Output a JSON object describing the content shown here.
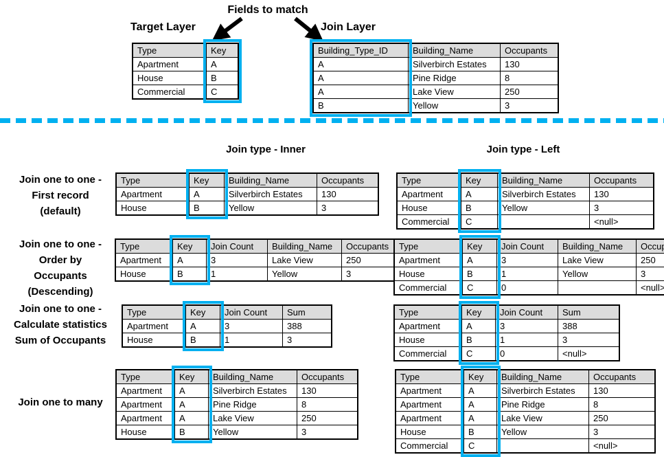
{
  "title": "Fields to match",
  "top": {
    "target_label": "Target Layer",
    "join_label": "Join Layer",
    "target_table": {
      "name": "target-layer",
      "headers": [
        "Type",
        "Key"
      ],
      "rows": [
        [
          "Apartment",
          "A"
        ],
        [
          "House",
          "B"
        ],
        [
          "Commercial",
          "C"
        ]
      ],
      "key_col": 1
    },
    "join_table": {
      "name": "join-layer",
      "headers": [
        "Building_Type_ID",
        "Building_Name",
        "Occupants"
      ],
      "rows": [
        [
          "A",
          "Silverbirch Estates",
          "130"
        ],
        [
          "A",
          "Pine Ridge",
          "8"
        ],
        [
          "A",
          "Lake View",
          "250"
        ],
        [
          "B",
          "Yellow",
          "3"
        ]
      ],
      "key_col": 0
    }
  },
  "join_type_headers": {
    "inner": "Join type - Inner",
    "left": "Join type - Left"
  },
  "sections": [
    {
      "label_lines": [
        "Join one to one -",
        "First record",
        "(default)"
      ],
      "inner_table": {
        "name": "inner-join-first-record",
        "headers": [
          "Type",
          "Key",
          "Building_Name",
          "Occupants"
        ],
        "rows": [
          [
            "Apartment",
            "A",
            "Silverbirch Estates",
            "130"
          ],
          [
            "House",
            "B",
            "Yellow",
            "3"
          ]
        ],
        "key_col": 1
      },
      "left_table": {
        "name": "left-join-first-record",
        "headers": [
          "Type",
          "Key",
          "Building_Name",
          "Occupants"
        ],
        "rows": [
          [
            "Apartment",
            "A",
            "Silverbirch Estates",
            "130"
          ],
          [
            "House",
            "B",
            "Yellow",
            "3"
          ],
          [
            "Commercial",
            "C",
            "",
            "<null>"
          ]
        ],
        "key_col": 1
      }
    },
    {
      "label_lines": [
        "Join one to one -",
        "Order by",
        "Occupants",
        "(Descending)"
      ],
      "inner_table": {
        "name": "inner-join-order-by",
        "headers": [
          "Type",
          "Key",
          "Join Count",
          "Building_Name",
          "Occupants"
        ],
        "rows": [
          [
            "Apartment",
            "A",
            "3",
            "Lake View",
            "250"
          ],
          [
            "House",
            "B",
            "1",
            "Yellow",
            "3"
          ]
        ],
        "key_col": 1
      },
      "left_table": {
        "name": "left-join-order-by",
        "headers": [
          "Type",
          "Key",
          "Join Count",
          "Building_Name",
          "Occupants"
        ],
        "rows": [
          [
            "Apartment",
            "A",
            "3",
            "Lake View",
            "250"
          ],
          [
            "House",
            "B",
            "1",
            "Yellow",
            "3"
          ],
          [
            "Commercial",
            "C",
            "0",
            "",
            "<null>"
          ]
        ],
        "key_col": 1
      }
    },
    {
      "label_lines": [
        "Join one to one -",
        "Calculate statistics",
        "Sum of Occupants"
      ],
      "inner_table": {
        "name": "inner-join-statistics",
        "headers": [
          "Type",
          "Key",
          "Join Count",
          "Sum"
        ],
        "rows": [
          [
            "Apartment",
            "A",
            "3",
            "388"
          ],
          [
            "House",
            "B",
            "1",
            "3"
          ]
        ],
        "key_col": 1
      },
      "left_table": {
        "name": "left-join-statistics",
        "headers": [
          "Type",
          "Key",
          "Join Count",
          "Sum"
        ],
        "rows": [
          [
            "Apartment",
            "A",
            "3",
            "388"
          ],
          [
            "House",
            "B",
            "1",
            "3"
          ],
          [
            "Commercial",
            "C",
            "0",
            "<null>"
          ]
        ],
        "key_col": 1
      }
    },
    {
      "label_lines": [
        "Join one to many"
      ],
      "inner_table": {
        "name": "inner-join-one-to-many",
        "headers": [
          "Type",
          "Key",
          "Building_Name",
          "Occupants"
        ],
        "rows": [
          [
            "Apartment",
            "A",
            "Silverbirch Estates",
            "130"
          ],
          [
            "Apartment",
            "A",
            "Pine Ridge",
            "8"
          ],
          [
            "Apartment",
            "A",
            "Lake View",
            "250"
          ],
          [
            "House",
            "B",
            "Yellow",
            "3"
          ]
        ],
        "key_col": 1
      },
      "left_table": {
        "name": "left-join-one-to-many",
        "headers": [
          "Type",
          "Key",
          "Building_Name",
          "Occupants"
        ],
        "rows": [
          [
            "Apartment",
            "A",
            "Silverbirch Estates",
            "130"
          ],
          [
            "Apartment",
            "A",
            "Pine Ridge",
            "8"
          ],
          [
            "Apartment",
            "A",
            "Lake View",
            "250"
          ],
          [
            "House",
            "B",
            "Yellow",
            "3"
          ],
          [
            "Commercial",
            "C",
            "",
            "<null>"
          ]
        ],
        "key_col": 1
      }
    }
  ],
  "colors": {
    "highlight": "#00b0f0",
    "header_bg": "#dcdcdc",
    "border": "#000000",
    "text": "#000000"
  }
}
